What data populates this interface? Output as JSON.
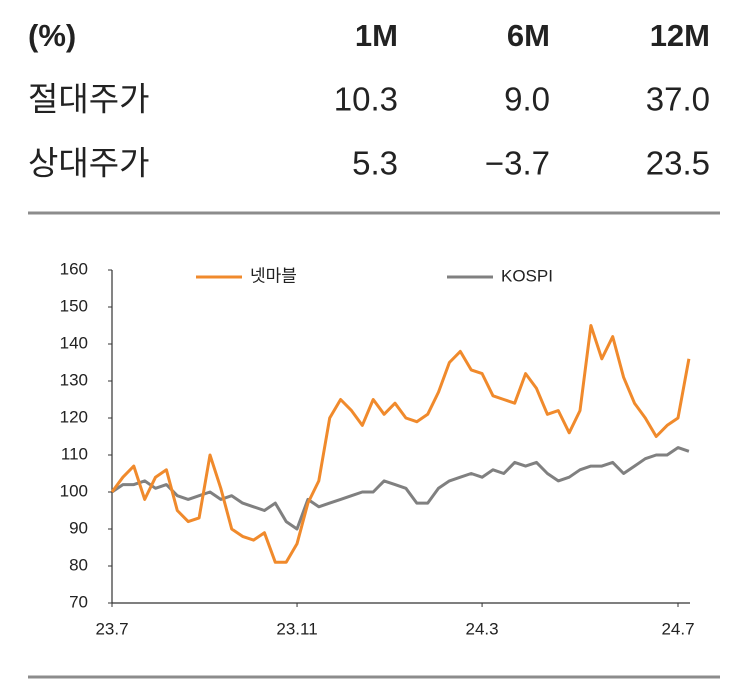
{
  "table": {
    "header": [
      "(%)",
      "1M",
      "6M",
      "12M"
    ],
    "rows": [
      [
        "절대주가",
        "10.3",
        "9.0",
        "37.0"
      ],
      [
        "상대주가",
        "5.3",
        "−3.7",
        "23.5"
      ]
    ]
  },
  "chart_data": {
    "type": "line",
    "categories": [
      "23.7",
      null,
      null,
      null,
      null,
      null,
      null,
      null,
      null,
      null,
      null,
      null,
      null,
      null,
      null,
      null,
      null,
      "23.11",
      null,
      null,
      null,
      null,
      null,
      null,
      null,
      null,
      null,
      null,
      null,
      null,
      null,
      null,
      null,
      null,
      "24.3",
      null,
      null,
      null,
      null,
      null,
      null,
      null,
      null,
      null,
      null,
      null,
      null,
      null,
      null,
      null,
      null,
      null,
      "24.7",
      null
    ],
    "series": [
      {
        "name": "넷마블",
        "color": "#f08a2c",
        "values": [
          100,
          104,
          107,
          98,
          104,
          106,
          95,
          92,
          93,
          110,
          101,
          90,
          88,
          87,
          89,
          81,
          81,
          86,
          97,
          103,
          120,
          125,
          122,
          118,
          125,
          121,
          124,
          120,
          119,
          121,
          127,
          135,
          138,
          133,
          132,
          126,
          125,
          124,
          132,
          128,
          121,
          122,
          116,
          122,
          145,
          136,
          142,
          131,
          124,
          120,
          115,
          118,
          120,
          136
        ]
      },
      {
        "name": "KOSPI",
        "color": "#808080",
        "values": [
          100,
          102,
          102,
          103,
          101,
          102,
          99,
          98,
          99,
          100,
          98,
          99,
          97,
          96,
          95,
          97,
          92,
          90,
          98,
          96,
          97,
          98,
          99,
          100,
          100,
          103,
          102,
          101,
          97,
          97,
          101,
          103,
          104,
          105,
          104,
          106,
          105,
          108,
          107,
          108,
          105,
          103,
          104,
          106,
          107,
          107,
          108,
          105,
          107,
          109,
          110,
          110,
          112,
          111
        ]
      }
    ],
    "ylim": [
      70,
      160
    ],
    "yticks": [
      70,
      80,
      90,
      100,
      110,
      120,
      130,
      140,
      150,
      160
    ]
  }
}
